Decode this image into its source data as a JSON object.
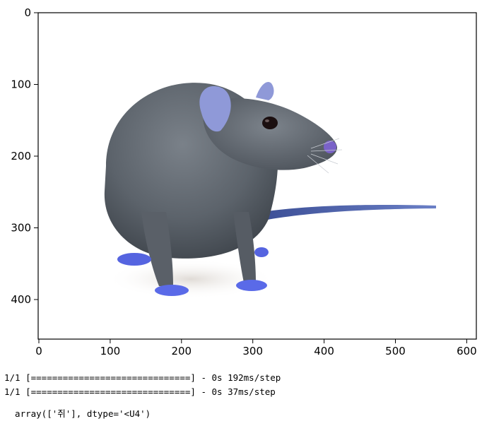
{
  "plot": {
    "x_axis": {
      "range": [
        0,
        610
      ],
      "ticks": [
        "0",
        "100",
        "200",
        "300",
        "400",
        "500",
        "600"
      ],
      "tick_values": [
        0,
        100,
        200,
        300,
        400,
        500,
        600
      ]
    },
    "y_axis": {
      "range": [
        0,
        455
      ],
      "inverted": true,
      "ticks": [
        "0",
        "100",
        "200",
        "300",
        "400"
      ],
      "tick_values": [
        0,
        100,
        200,
        300,
        400
      ]
    },
    "image_subject": "rat-photo",
    "colors": {
      "fur": "#5f666e",
      "fur_dark": "#3d434b",
      "paws": "#5a6ae8",
      "tail": "#4a5da8",
      "ear": "#8b96d6"
    }
  },
  "console": {
    "lines": [
      "1/1 [==============================] - 0s 192ms/step",
      "1/1 [==============================] - 0s 37ms/step",
      "  array(['쥐'], dtype='<U4')"
    ]
  }
}
